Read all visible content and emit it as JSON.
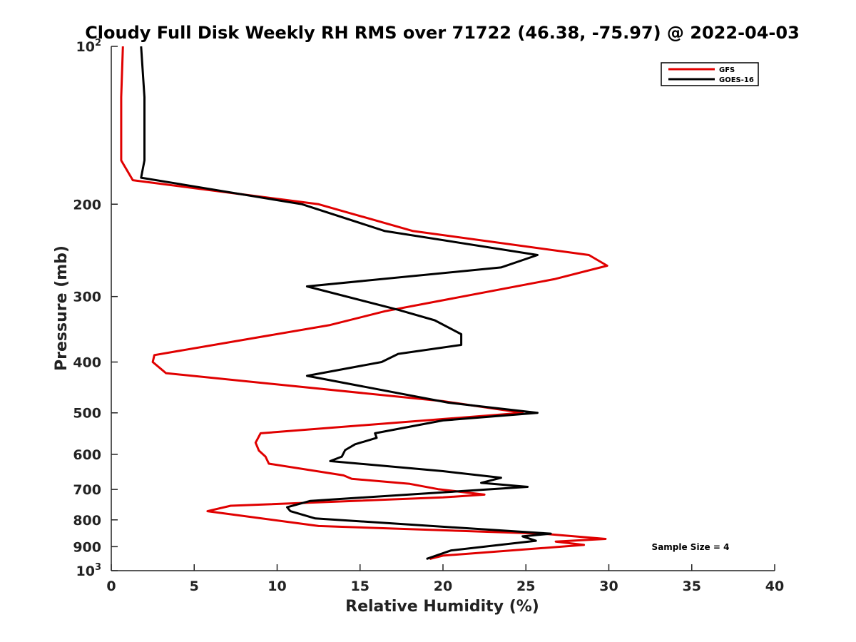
{
  "chart_data": {
    "type": "line",
    "title": "Cloudy Full Disk Weekly RH RMS over 71722 (46.38, -75.97) @ 2022-04-03",
    "xlabel": "Relative Humidity (%)",
    "ylabel": "Pressure (mb)",
    "xlim": [
      0,
      40
    ],
    "ylim": [
      100,
      1000
    ],
    "yscale": "log",
    "yreversed": true,
    "grid": false,
    "legend_position": "top-right",
    "x_ticks": [
      "0",
      "5",
      "10",
      "15",
      "20",
      "25",
      "30",
      "35",
      "40"
    ],
    "x_tick_values": [
      0,
      5,
      10,
      15,
      20,
      25,
      30,
      35,
      40
    ],
    "y_ticks": [
      {
        "value": 100,
        "base": "10",
        "exp": "2"
      },
      {
        "value": 200,
        "label": "200"
      },
      {
        "value": 300,
        "label": "300"
      },
      {
        "value": 400,
        "label": "400"
      },
      {
        "value": 500,
        "label": "500"
      },
      {
        "value": 600,
        "label": "600"
      },
      {
        "value": 700,
        "label": "700"
      },
      {
        "value": 800,
        "label": "800"
      },
      {
        "value": 900,
        "label": "900"
      },
      {
        "value": 1000,
        "base": "10",
        "exp": "3"
      }
    ],
    "series": [
      {
        "name": "GFS",
        "color": "#e00000",
        "points": [
          [
            0.7,
            100
          ],
          [
            0.6,
            125
          ],
          [
            0.6,
            150
          ],
          [
            0.6,
            165
          ],
          [
            1.3,
            180
          ],
          [
            12.5,
            200
          ],
          [
            18.2,
            225
          ],
          [
            28.8,
            250
          ],
          [
            29.9,
            262
          ],
          [
            26.7,
            278
          ],
          [
            16.5,
            320
          ],
          [
            13.2,
            340
          ],
          [
            2.6,
            388
          ],
          [
            2.5,
            400
          ],
          [
            3.3,
            420
          ],
          [
            20.0,
            475
          ],
          [
            24.8,
            500
          ],
          [
            9.0,
            547
          ],
          [
            8.7,
            570
          ],
          [
            8.9,
            590
          ],
          [
            9.3,
            606
          ],
          [
            9.5,
            625
          ],
          [
            14.0,
            658
          ],
          [
            14.5,
            668
          ],
          [
            18.0,
            683
          ],
          [
            19.7,
            699
          ],
          [
            22.5,
            716
          ],
          [
            20.0,
            725
          ],
          [
            7.2,
            752
          ],
          [
            5.8,
            770
          ],
          [
            12.5,
            822
          ],
          [
            26.0,
            850
          ],
          [
            29.8,
            870
          ],
          [
            26.8,
            880
          ],
          [
            28.5,
            893
          ],
          [
            20.0,
            936
          ],
          [
            19.2,
            950
          ]
        ]
      },
      {
        "name": "GOES-16",
        "color": "#000000",
        "points": [
          [
            1.8,
            100
          ],
          [
            2.0,
            125
          ],
          [
            2.0,
            150
          ],
          [
            2.0,
            165
          ],
          [
            1.8,
            178
          ],
          [
            11.5,
            200
          ],
          [
            16.5,
            225
          ],
          [
            25.7,
            250
          ],
          [
            23.5,
            264
          ],
          [
            11.8,
            287
          ],
          [
            17.3,
            318
          ],
          [
            19.5,
            333
          ],
          [
            21.1,
            354
          ],
          [
            21.1,
            371
          ],
          [
            17.3,
            386
          ],
          [
            16.3,
            400
          ],
          [
            11.8,
            425
          ],
          [
            15.3,
            446
          ],
          [
            20.3,
            478
          ],
          [
            25.7,
            500
          ],
          [
            20.0,
            517
          ],
          [
            15.9,
            547
          ],
          [
            16.0,
            558
          ],
          [
            14.7,
            574
          ],
          [
            14.1,
            589
          ],
          [
            13.9,
            606
          ],
          [
            13.2,
            618
          ],
          [
            20.0,
            646
          ],
          [
            23.5,
            665
          ],
          [
            22.3,
            680
          ],
          [
            25.1,
            692
          ],
          [
            12.0,
            736
          ],
          [
            10.6,
            757
          ],
          [
            10.8,
            770
          ],
          [
            12.3,
            795
          ],
          [
            26.5,
            850
          ],
          [
            24.8,
            860
          ],
          [
            25.6,
            877
          ],
          [
            20.5,
            915
          ],
          [
            19.0,
            950
          ]
        ]
      }
    ],
    "annotation": "Sample Size = 4"
  }
}
